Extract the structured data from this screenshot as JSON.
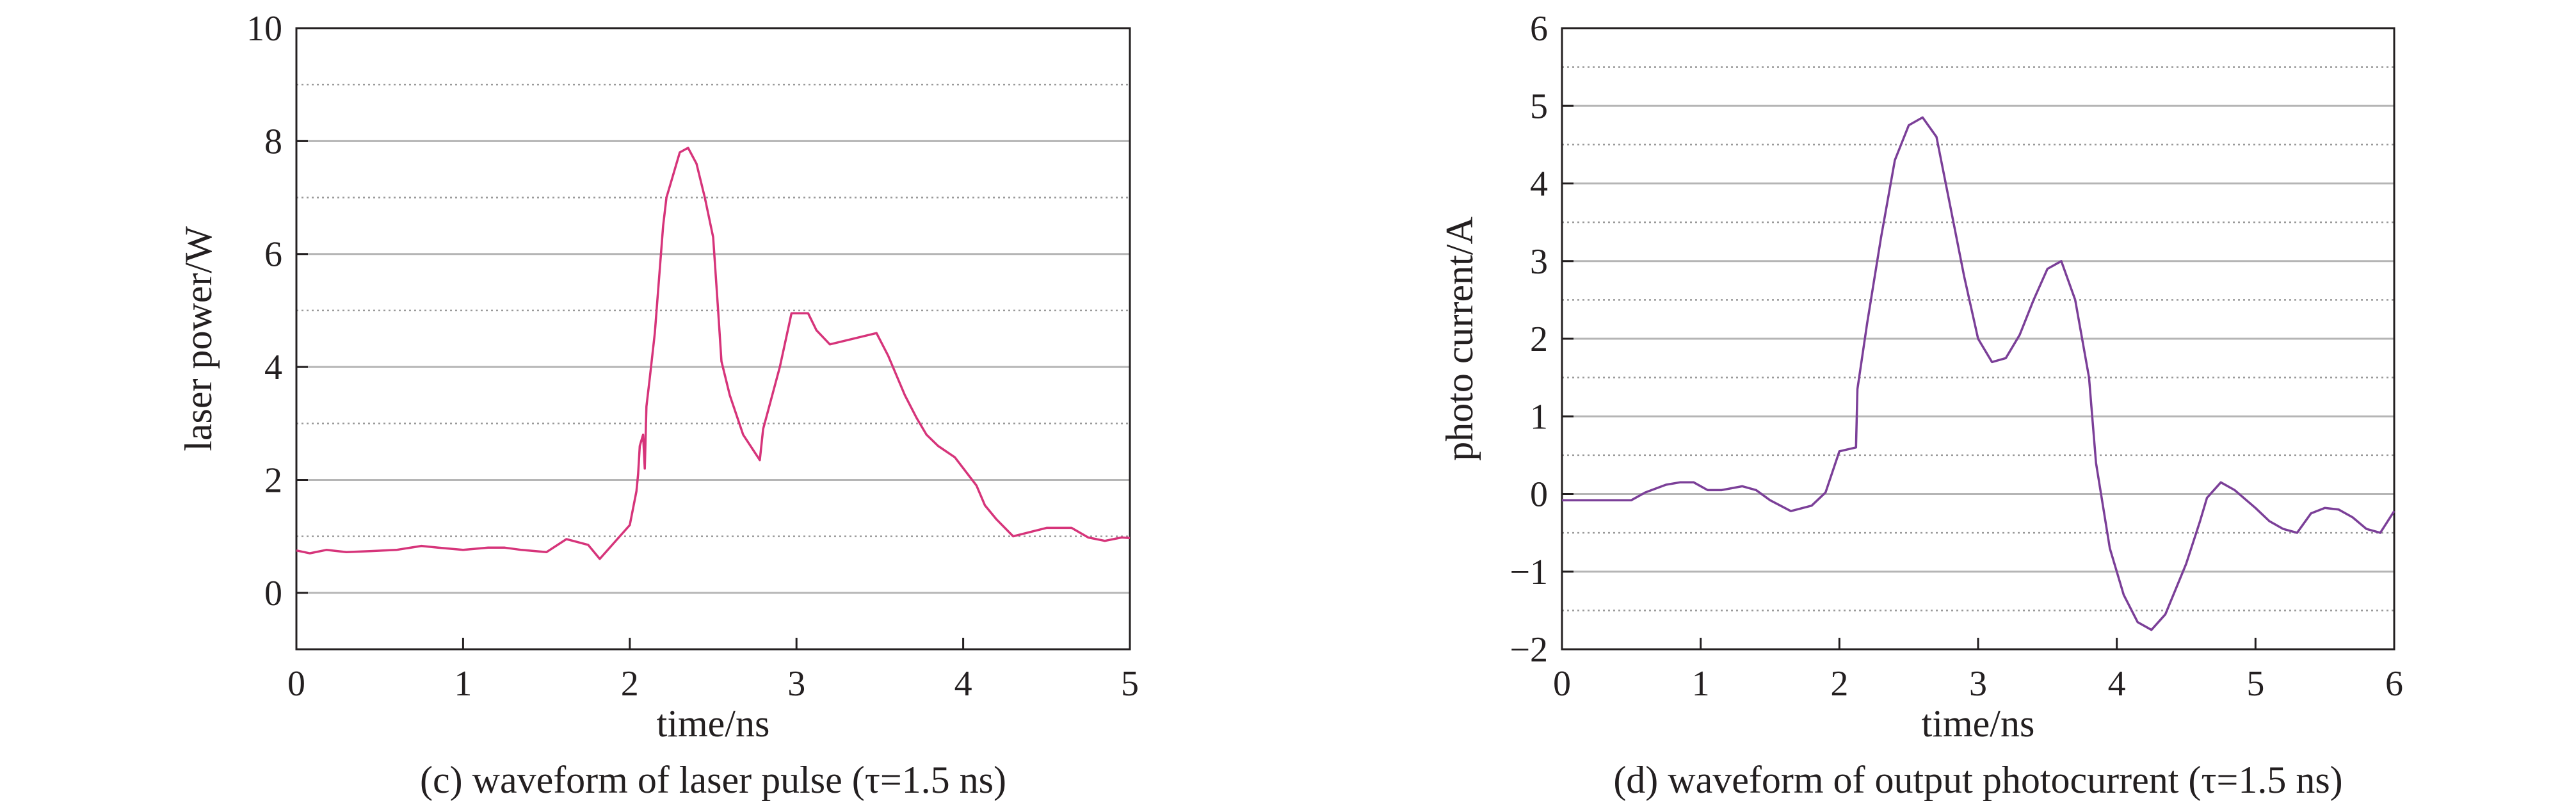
{
  "chart_data": [
    {
      "id": "c",
      "type": "line",
      "caption": "(c) waveform of laser pulse (τ=1.5 ns)",
      "xlabel": "time/ns",
      "ylabel": "laser power/W",
      "xlim": [
        0,
        5
      ],
      "ylim": [
        -1,
        10
      ],
      "xticks": [
        0,
        1,
        2,
        3,
        4,
        5
      ],
      "yticks": [
        0,
        2,
        4,
        6,
        8,
        10
      ],
      "grid_major": [
        0,
        2,
        4,
        6,
        8
      ],
      "grid_minor": [
        1,
        3,
        5,
        7,
        9
      ],
      "line_color": "#d6347a",
      "series": [
        {
          "name": "laser power",
          "x": [
            0,
            0.08,
            0.18,
            0.3,
            0.45,
            0.6,
            0.75,
            0.85,
            1.0,
            1.15,
            1.25,
            1.35,
            1.5,
            1.62,
            1.75,
            1.82,
            2.0,
            2.04,
            2.05,
            2.06,
            2.08,
            2.09,
            2.1,
            2.12,
            2.15,
            2.2,
            2.22,
            2.25,
            2.3,
            2.35,
            2.4,
            2.45,
            2.5,
            2.53,
            2.55,
            2.6,
            2.68,
            2.78,
            2.8,
            2.9,
            2.97,
            3.07,
            3.12,
            3.2,
            3.48,
            3.55,
            3.65,
            3.72,
            3.78,
            3.85,
            3.95,
            4.08,
            4.13,
            4.2,
            4.3,
            4.5,
            4.65,
            4.75,
            4.85,
            4.95,
            5.0
          ],
          "y": [
            0.75,
            0.7,
            0.76,
            0.72,
            0.74,
            0.76,
            0.83,
            0.8,
            0.76,
            0.8,
            0.8,
            0.76,
            0.72,
            0.95,
            0.85,
            0.6,
            1.2,
            1.8,
            2.1,
            2.6,
            2.8,
            2.2,
            3.3,
            3.8,
            4.6,
            6.5,
            7.0,
            7.3,
            7.8,
            7.88,
            7.6,
            7.0,
            6.3,
            5.0,
            4.1,
            3.5,
            2.8,
            2.35,
            2.9,
            4.0,
            4.95,
            4.95,
            4.65,
            4.4,
            4.6,
            4.2,
            3.5,
            3.1,
            2.8,
            2.6,
            2.4,
            1.9,
            1.55,
            1.3,
            1.0,
            1.15,
            1.15,
            0.98,
            0.92,
            0.98,
            0.97
          ]
        }
      ]
    },
    {
      "id": "d",
      "type": "line",
      "caption": "(d) waveform of output photocurrent (τ=1.5 ns)",
      "xlabel": "time/ns",
      "ylabel": "photo current/A",
      "xlim": [
        0,
        6
      ],
      "ylim": [
        -2,
        6
      ],
      "xticks": [
        0,
        1,
        2,
        3,
        4,
        5,
        6
      ],
      "yticks": [
        -2,
        -1,
        0,
        1,
        2,
        3,
        4,
        5,
        6
      ],
      "grid_major": [
        -1,
        0,
        1,
        2,
        3,
        4,
        5
      ],
      "grid_minor": [
        -1.5,
        -0.5,
        0.5,
        1.5,
        2.5,
        3.5,
        4.5,
        5.5
      ],
      "line_color": "#7b3f98",
      "series": [
        {
          "name": "photo current",
          "x": [
            0,
            0.3,
            0.5,
            0.6,
            0.75,
            0.85,
            0.95,
            1.05,
            1.15,
            1.3,
            1.4,
            1.5,
            1.65,
            1.8,
            1.9,
            2.0,
            2.12,
            2.13,
            2.2,
            2.3,
            2.4,
            2.5,
            2.6,
            2.7,
            2.8,
            2.9,
            3.0,
            3.1,
            3.2,
            3.3,
            3.4,
            3.5,
            3.6,
            3.7,
            3.8,
            3.85,
            3.95,
            4.05,
            4.15,
            4.25,
            4.35,
            4.5,
            4.6,
            4.65,
            4.75,
            4.85,
            5.0,
            5.1,
            5.2,
            5.3,
            5.4,
            5.5,
            5.6,
            5.7,
            5.8,
            5.9,
            6.0
          ],
          "y": [
            -0.08,
            -0.08,
            -0.08,
            0.02,
            0.12,
            0.15,
            0.15,
            0.05,
            0.05,
            0.1,
            0.05,
            -0.08,
            -0.22,
            -0.15,
            0.02,
            0.55,
            0.6,
            1.35,
            2.2,
            3.3,
            4.3,
            4.75,
            4.85,
            4.6,
            3.7,
            2.8,
            2.0,
            1.7,
            1.75,
            2.05,
            2.5,
            2.9,
            3.0,
            2.5,
            1.5,
            0.4,
            -0.7,
            -1.3,
            -1.65,
            -1.75,
            -1.55,
            -0.9,
            -0.35,
            -0.05,
            0.15,
            0.05,
            -0.18,
            -0.35,
            -0.45,
            -0.5,
            -0.25,
            -0.18,
            -0.2,
            -0.3,
            -0.45,
            -0.5,
            -0.22
          ]
        }
      ]
    }
  ]
}
